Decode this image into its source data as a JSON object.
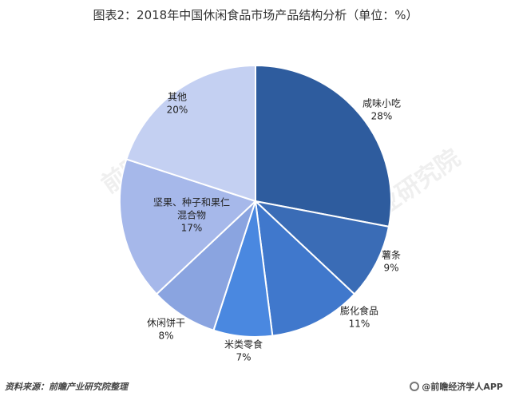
{
  "chart_data": {
    "type": "pie",
    "title": "图表2：2018年中国休闲食品市场产品结构分析（单位：%）",
    "slices": [
      {
        "label_lines": [
          "咸味小吃"
        ],
        "pct_label": "28%",
        "value": 28,
        "color": "#2e5c9e"
      },
      {
        "label_lines": [
          "薯条"
        ],
        "pct_label": "9%",
        "value": 9,
        "color": "#3a6cb6"
      },
      {
        "label_lines": [
          "膨化食品"
        ],
        "pct_label": "11%",
        "value": 11,
        "color": "#4078cc"
      },
      {
        "label_lines": [
          "米类零食"
        ],
        "pct_label": "7%",
        "value": 7,
        "color": "#4a88e0"
      },
      {
        "label_lines": [
          "休闲饼干"
        ],
        "pct_label": "8%",
        "value": 8,
        "color": "#8aa4e0"
      },
      {
        "label_lines": [
          "坚果、种子和果仁",
          "混合物"
        ],
        "pct_label": "17%",
        "value": 17,
        "color": "#a6b8ea"
      },
      {
        "label_lines": [
          "其他"
        ],
        "pct_label": "20%",
        "value": 20,
        "color": "#c4d0f2"
      }
    ]
  },
  "footer": {
    "source": "资料来源：前瞻产业研究院整理",
    "brand": "@前瞻经济学人APP"
  },
  "watermark": {
    "text": "前瞻产业研究院"
  }
}
